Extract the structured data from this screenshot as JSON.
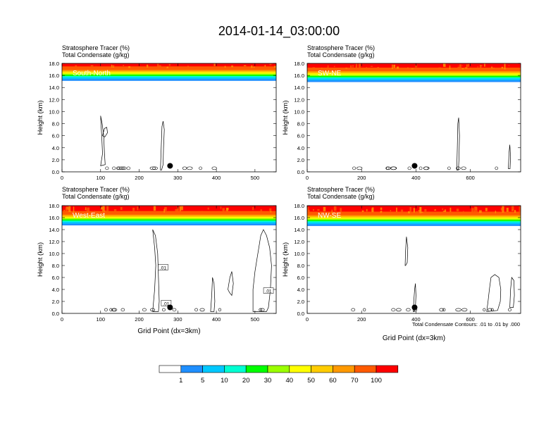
{
  "title": "2014-01-14_03:00:00",
  "footnote": "Total Condensate Contours: .01 to .01 by .000",
  "colorbar": {
    "colors": [
      "#ffffff",
      "#1f8fff",
      "#00c8ff",
      "#00ffd2",
      "#00ff00",
      "#9bff00",
      "#ffff00",
      "#ffcc00",
      "#ff9900",
      "#ff5a00",
      "#ff0000"
    ],
    "labels": [
      "1",
      "5",
      "10",
      "20",
      "30",
      "40",
      "50",
      "60",
      "70",
      "100"
    ]
  },
  "chart_data": [
    {
      "type": "heatmap",
      "panel_label": "South-North",
      "header_line1": "Stratosphere Tracer   (%)",
      "header_line2": "Total Condensate   (g/kg)",
      "xlabel": "",
      "ylabel": "Height (km)",
      "xlim": [
        0,
        555
      ],
      "ylim": [
        0,
        18
      ],
      "xticks": [
        "0",
        "100",
        "200",
        "300",
        "400",
        "500"
      ],
      "yticks": [
        "0.0",
        "2.0",
        "4.0",
        "6.0",
        "8.0",
        "10.0",
        "12.0",
        "14.0",
        "16.0",
        "18.0"
      ],
      "tracer_band_base_km": 15.1,
      "marker_x": 280,
      "marker_y": 1.0
    },
    {
      "type": "heatmap",
      "panel_label": "SW-NE",
      "header_line1": "Stratosphere Tracer   (%)",
      "header_line2": "Total Condensate   (g/kg)",
      "xlabel": "",
      "ylabel": "Height (km)",
      "xlim": [
        0,
        785
      ],
      "ylim": [
        0,
        18
      ],
      "xticks": [
        "0",
        "200",
        "400",
        "600"
      ],
      "yticks": [
        "0.0",
        "2.0",
        "4.0",
        "6.0",
        "8.0",
        "10.0",
        "12.0",
        "14.0",
        "16.0",
        "18.0"
      ],
      "tracer_band_base_km": 14.9,
      "marker_x": 395,
      "marker_y": 1.0
    },
    {
      "type": "heatmap",
      "panel_label": "West-East",
      "header_line1": "Stratosphere Tracer   (%)",
      "header_line2": "Total Condensate   (g/kg)",
      "xlabel": "Grid Point (dx=3km)",
      "ylabel": "Height (km)",
      "xlim": [
        0,
        555
      ],
      "ylim": [
        0,
        18
      ],
      "xticks": [
        "0",
        "100",
        "200",
        "300",
        "400",
        "500"
      ],
      "yticks": [
        "0.0",
        "2.0",
        "4.0",
        "6.0",
        "8.0",
        "10.0",
        "12.0",
        "14.0",
        "16.0",
        "18.0"
      ],
      "tracer_band_base_km": 14.7,
      "marker_x": 280,
      "marker_y": 1.0,
      "contour_labels": [
        ".01",
        ".01",
        ".01"
      ]
    },
    {
      "type": "heatmap",
      "panel_label": "NW-SE",
      "header_line1": "Stratosphere Tracer   (%)",
      "header_line2": "Total Condensate   (g/kg)",
      "xlabel": "Grid Point (dx=3km)",
      "ylabel": "Height (km)",
      "xlim": [
        0,
        785
      ],
      "ylim": [
        0,
        18
      ],
      "xticks": [
        "0",
        "200",
        "400",
        "600"
      ],
      "yticks": [
        "0.0",
        "2.0",
        "4.0",
        "6.0",
        "8.0",
        "10.0",
        "12.0",
        "14.0",
        "16.0",
        "18.0"
      ],
      "tracer_band_base_km": 14.6,
      "marker_x": 395,
      "marker_y": 1.0
    }
  ]
}
